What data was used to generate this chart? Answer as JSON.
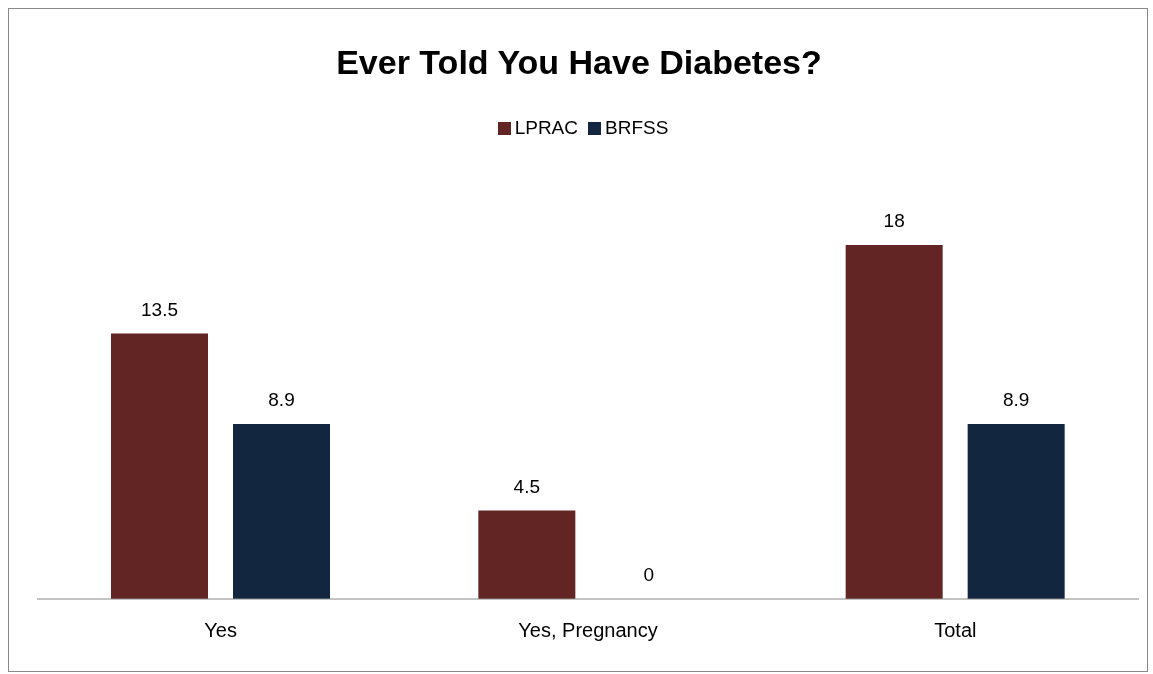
{
  "chart_data": {
    "type": "bar",
    "title": "Ever Told You Have Diabetes?",
    "categories": [
      "Yes",
      "Yes, Pregnancy",
      "Total"
    ],
    "series": [
      {
        "name": "LPRAC",
        "color": "#632523",
        "values": [
          13.5,
          4.5,
          18
        ]
      },
      {
        "name": "BRFSS",
        "color": "#12263f",
        "values": [
          8.9,
          0,
          8.9
        ]
      }
    ],
    "data_labels": true,
    "legend": "top",
    "grid": false
  }
}
